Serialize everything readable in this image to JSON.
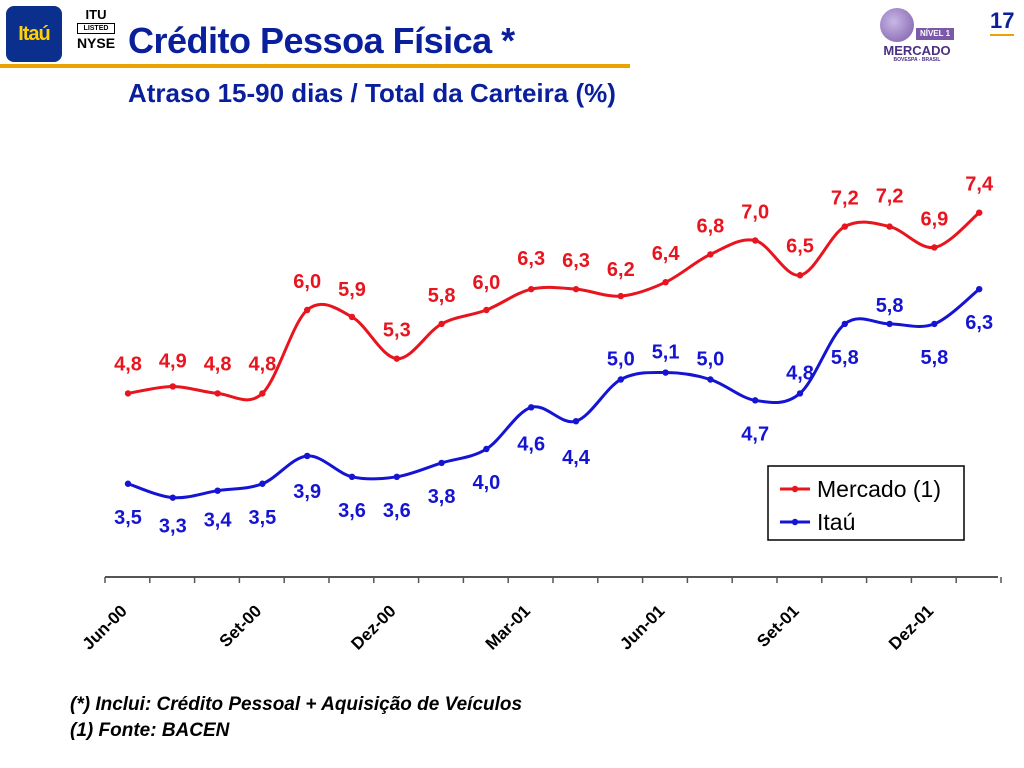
{
  "header": {
    "logo_text": "Itaú",
    "badge_lines": [
      "ITU",
      "LISTED",
      "NYSE"
    ],
    "title": "Crédito Pessoa Física *",
    "subtitle": "Atraso 15-90 dias / Total da Carteira (%)",
    "page_number": "17"
  },
  "mercado_logo": {
    "level": "NÍVEL 1",
    "name": "MERCADO",
    "exchange": "BOVESPA - BRASIL"
  },
  "colors": {
    "title": "#0a1f9c",
    "rule": "#e9a400",
    "mercado": "#e8141e",
    "itau": "#1414d2"
  },
  "footnotes": [
    "(*) Inclui: Crédito Pessoal + Aquisição de Veículos",
    "(1) Fonte: BACEN"
  ],
  "chart_data": {
    "type": "line",
    "x": [
      "Jun-00",
      "Jul-00",
      "Ago-00",
      "Set-00",
      "Out-00",
      "Nov-00",
      "Dez-00",
      "Jan-01",
      "Fev-01",
      "Mar-01",
      "Abr-01",
      "Mai-01",
      "Jun-01",
      "Jul-01",
      "Ago-01",
      "Set-01",
      "Out-01",
      "Nov-01",
      "Dez-01",
      "Jan-02"
    ],
    "tick_labels": [
      "Jun-00",
      "Set-00",
      "Dez-00",
      "Mar-01",
      "Jun-01",
      "Set-01",
      "Dez-01"
    ],
    "series": [
      {
        "name": "Mercado (1)",
        "color": "#e8141e",
        "values": [
          4.8,
          4.9,
          4.8,
          4.8,
          6.0,
          5.9,
          5.3,
          5.8,
          6.0,
          6.3,
          6.3,
          6.2,
          6.4,
          6.8,
          7.0,
          6.5,
          7.2,
          7.2,
          6.9,
          7.4
        ],
        "labels": [
          "4,8",
          "4,9",
          "4,8",
          "4,8",
          "6,0",
          "5,9",
          "5,3",
          "5,8",
          "6,0",
          "6,3",
          "6,3",
          "6,2",
          "6,4",
          "6,8",
          "7,0",
          "6,5",
          "7,2",
          "7,2",
          "6,9",
          "7,4"
        ]
      },
      {
        "name": "Itaú",
        "color": "#1414d2",
        "values": [
          3.5,
          3.3,
          3.4,
          3.5,
          3.9,
          3.6,
          3.6,
          3.8,
          4.0,
          4.6,
          4.4,
          5.0,
          5.1,
          5.0,
          4.7,
          4.8,
          5.8,
          5.8,
          5.8,
          6.3
        ],
        "labels": [
          "3,5",
          "3,3",
          "3,4",
          "3,5",
          "3,9",
          "3,6",
          "3,6",
          "3,8",
          "4,0",
          "4,6",
          "4,4",
          "5,0",
          "5,1",
          "5,0",
          "4,7",
          "4,8",
          "5,8",
          "5,8",
          "5,8",
          "6,3"
        ]
      }
    ],
    "legend_position": "right",
    "grid": false
  }
}
